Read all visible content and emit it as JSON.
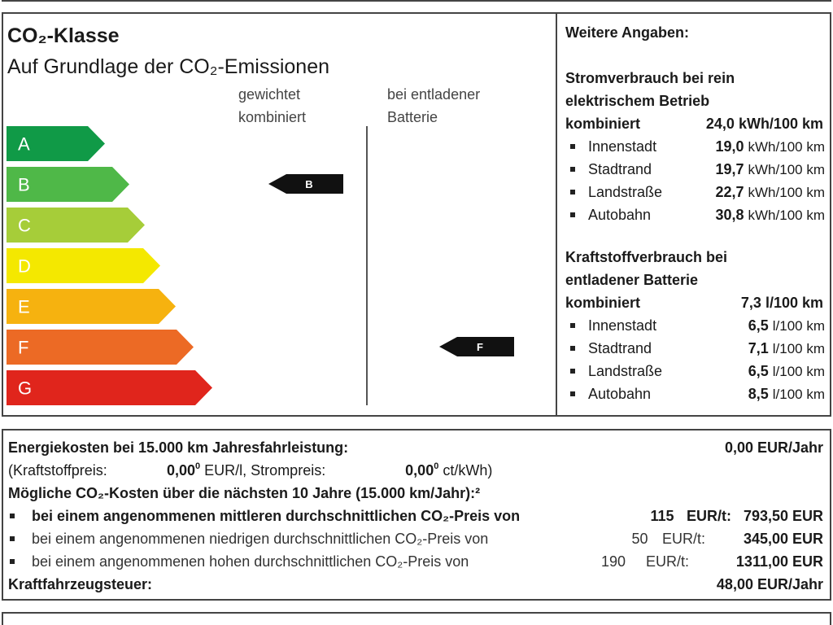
{
  "top": {
    "title": "CO₂-Klasse",
    "subtitle": "Auf Grundlage der CO₂-Emissionen",
    "headers": [
      [
        "gewichtet",
        "kombiniert"
      ],
      [
        "bei entladener",
        "Batterie"
      ]
    ],
    "classes": [
      {
        "letter": "A",
        "color": "#109a47"
      },
      {
        "letter": "B",
        "color": "#4fb848"
      },
      {
        "letter": "C",
        "color": "#a6cd39"
      },
      {
        "letter": "D",
        "color": "#f4e800"
      },
      {
        "letter": "E",
        "color": "#f6b20f"
      },
      {
        "letter": "F",
        "color": "#ec6a25"
      },
      {
        "letter": "G",
        "color": "#e0251c"
      }
    ],
    "markers": [
      {
        "column": 0,
        "class": "B"
      },
      {
        "column": 1,
        "class": "F"
      }
    ]
  },
  "more": {
    "heading": "Weitere Angaben:",
    "sections": [
      {
        "heading": [
          "Stromverbrauch bei rein",
          "elektrischem Betrieb"
        ],
        "combined_label": "kombiniert",
        "combined_value": "24,0 kWh/100 km",
        "items": [
          {
            "label": "Innenstadt",
            "value": "19,0",
            "unit": "kWh/100 km"
          },
          {
            "label": "Stadtrand",
            "value": "19,7",
            "unit": "kWh/100 km"
          },
          {
            "label": "Landstraße",
            "value": "22,7",
            "unit": "kWh/100 km"
          },
          {
            "label": "Autobahn",
            "value": "30,8",
            "unit": "kWh/100 km"
          }
        ]
      },
      {
        "heading": [
          "Kraftstoffverbrauch bei",
          "entladener Batterie"
        ],
        "combined_label": "kombiniert",
        "combined_value": "7,3 l/100 km",
        "items": [
          {
            "label": "Innenstadt",
            "value": "6,5",
            "unit": "l/100 km"
          },
          {
            "label": "Stadtrand",
            "value": "7,1",
            "unit": "l/100 km"
          },
          {
            "label": "Landstraße",
            "value": "6,5",
            "unit": "l/100 km"
          },
          {
            "label": "Autobahn",
            "value": "8,5",
            "unit": "l/100 km"
          }
        ]
      }
    ]
  },
  "costs": {
    "energy": {
      "label": "Energiekosten bei 15.000 km Jahresfahrleistung:",
      "value": "0,00 EUR/Jahr"
    },
    "prices": {
      "fuel_label": "(Kraftstoffpreis:",
      "fuel_value": "0,00",
      "fuel_note": "0",
      "fuel_unit": "EUR/l, Strompreis:",
      "power_value": "0,00",
      "power_note": "0",
      "power_unit": "ct/kWh)"
    },
    "co2_heading": "Mögliche CO₂-Kosten über die nächsten 10 Jahre (15.000 km/Jahr):²",
    "co2_rows": [
      {
        "text": "bei einem angenommenen mittleren durchschnittlichen CO₂-Preis von",
        "price": "115",
        "unit": "EUR/t:",
        "value": "793,50 EUR",
        "bold": true
      },
      {
        "text": "bei einem angenommenen niedrigen durchschnittlichen CO₂-Preis von",
        "price": "50",
        "unit": "EUR/t:",
        "value": "345,00 EUR",
        "bold": false
      },
      {
        "text": "bei einem angenommenen hohen durchschnittlichen CO₂-Preis von",
        "price": "190",
        "unit": "EUR/t:",
        "value": "1311,00 EUR",
        "bold": false
      }
    ],
    "tax": {
      "label": "Kraftfahrzeugsteuer:",
      "value": "48,00 EUR/Jahr"
    }
  }
}
